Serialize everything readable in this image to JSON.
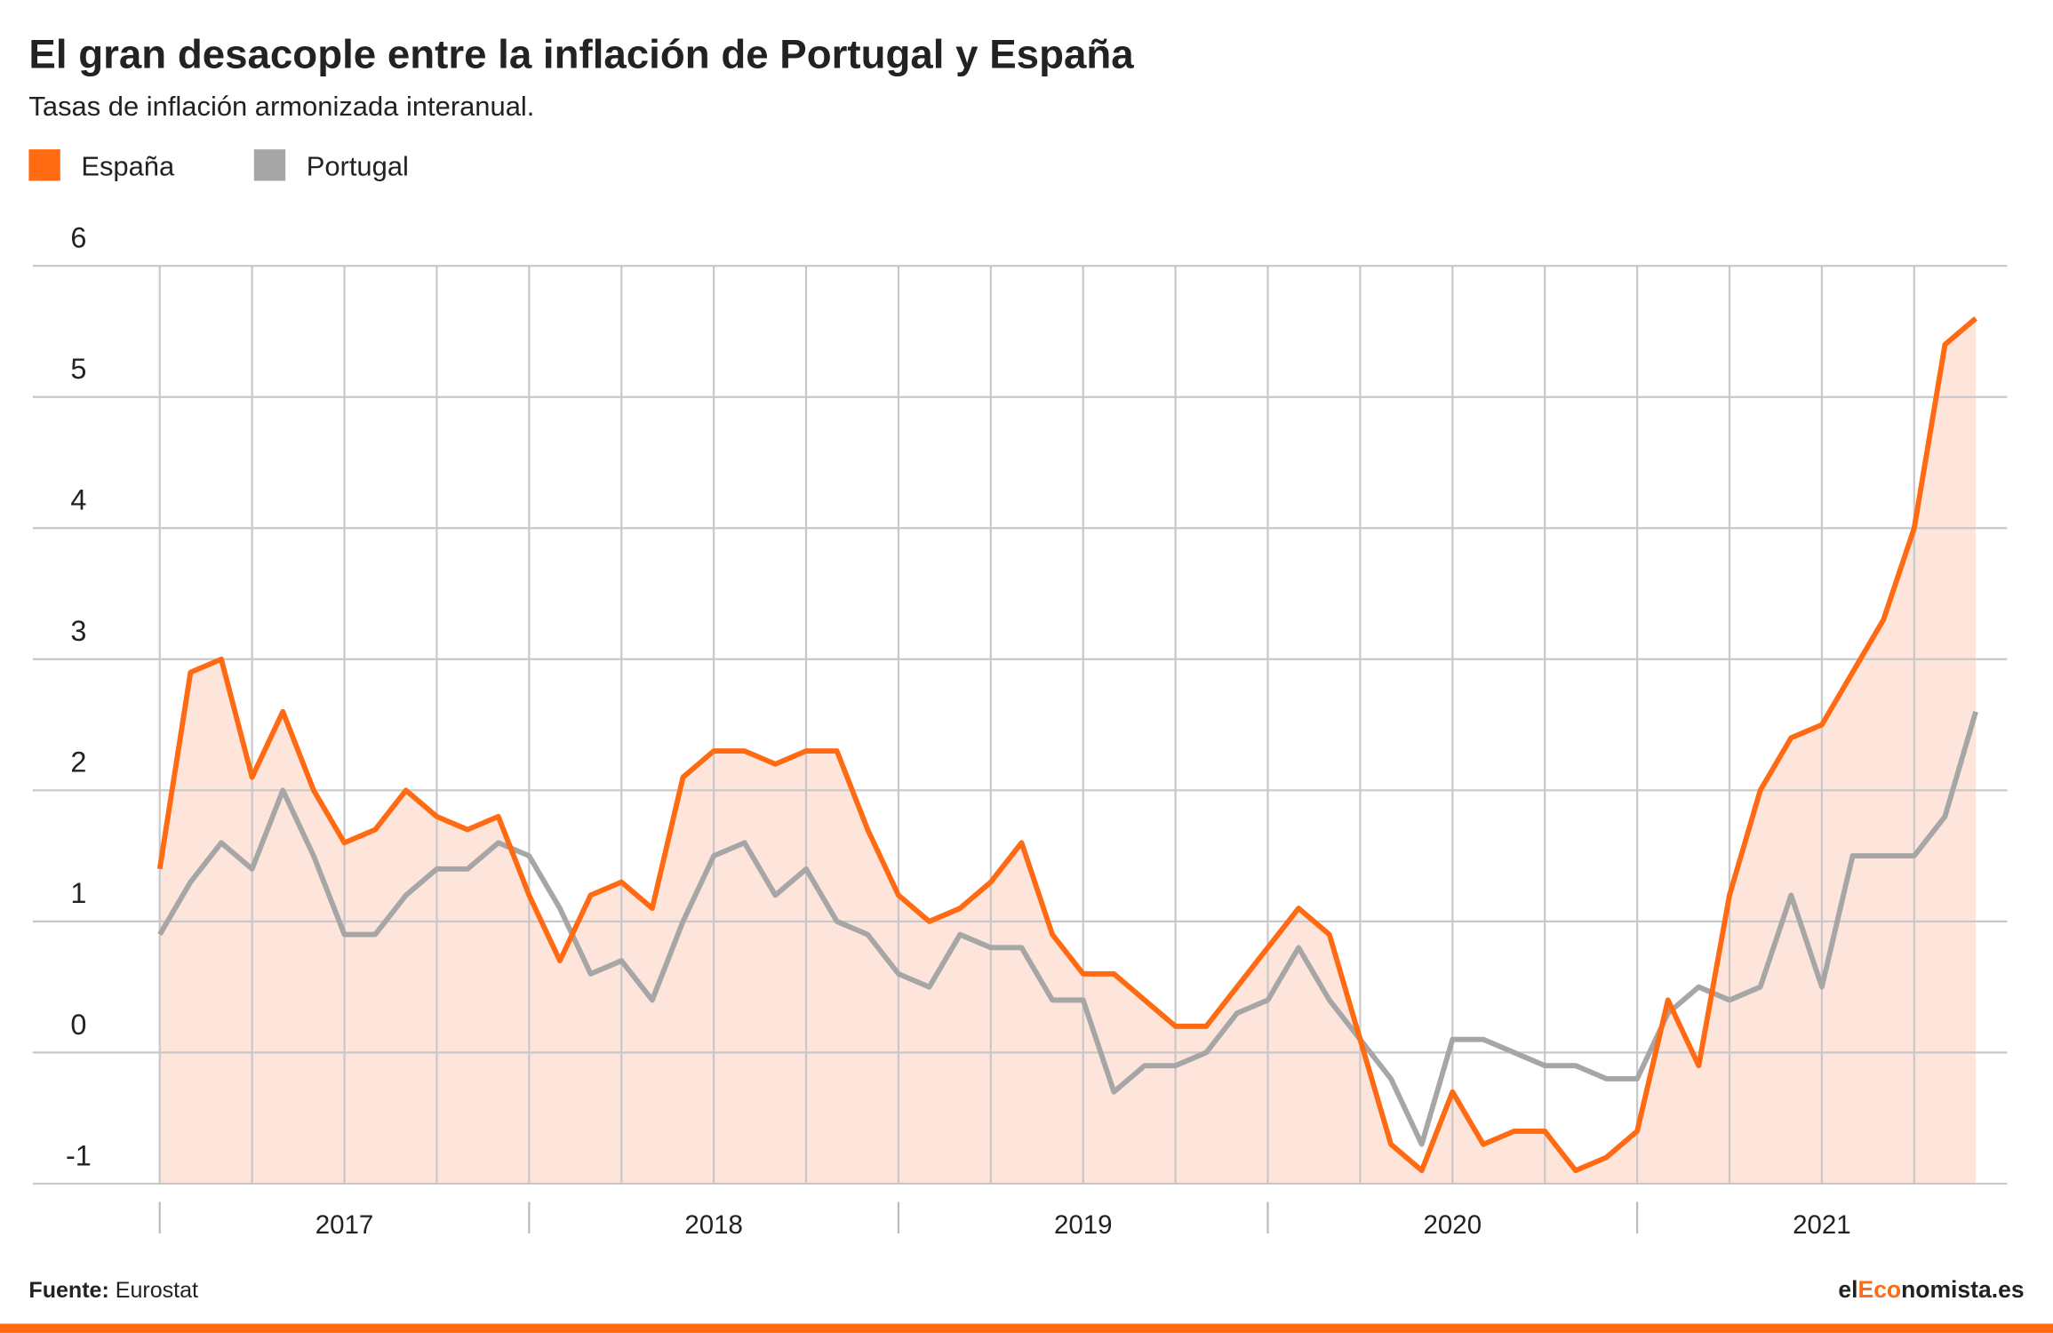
{
  "chart_data": {
    "type": "line",
    "title": "El gran desacople entre la inflación de Portugal y España",
    "subtitle": "Tasas de inflación armonizada interanual.",
    "categories": [
      null,
      null,
      null,
      null,
      null,
      null,
      "2017",
      null,
      null,
      null,
      null,
      null,
      null,
      null,
      null,
      null,
      null,
      null,
      "2018",
      null,
      null,
      null,
      null,
      null,
      null,
      null,
      null,
      null,
      null,
      null,
      "2019",
      null,
      null,
      null,
      null,
      null,
      null,
      null,
      null,
      null,
      null,
      null,
      "2020",
      null,
      null,
      null,
      null,
      null,
      null,
      null,
      null,
      null,
      null,
      null,
      "2021",
      null,
      null,
      null,
      null,
      null
    ],
    "series": [
      {
        "name": "España",
        "color": "#ff6a13",
        "fill": "#fde5dc",
        "values": [
          1.4,
          2.9,
          3.0,
          2.1,
          2.6,
          2.0,
          1.6,
          1.7,
          2.0,
          1.8,
          1.7,
          1.8,
          1.2,
          0.7,
          1.2,
          1.3,
          1.1,
          2.1,
          2.3,
          2.3,
          2.2,
          2.3,
          2.3,
          1.7,
          1.2,
          1.0,
          1.1,
          1.3,
          1.6,
          0.9,
          0.6,
          0.6,
          0.4,
          0.2,
          0.2,
          0.5,
          0.8,
          1.1,
          0.9,
          0.1,
          -0.7,
          -0.9,
          -0.3,
          -0.7,
          -0.6,
          -0.6,
          -0.9,
          -0.8,
          -0.6,
          0.4,
          -0.1,
          1.2,
          2.0,
          2.4,
          2.5,
          2.9,
          3.3,
          4.0,
          5.4,
          5.6
        ]
      },
      {
        "name": "Portugal",
        "color": "#a6a6a6",
        "values": [
          0.9,
          1.3,
          1.6,
          1.4,
          2.0,
          1.5,
          0.9,
          0.9,
          1.2,
          1.4,
          1.4,
          1.6,
          1.5,
          1.1,
          0.6,
          0.7,
          0.4,
          1.0,
          1.5,
          1.6,
          1.2,
          1.4,
          1.0,
          0.9,
          0.6,
          0.5,
          0.9,
          0.8,
          0.8,
          0.4,
          0.4,
          -0.3,
          -0.1,
          -0.1,
          0.0,
          0.3,
          0.4,
          0.8,
          0.4,
          0.1,
          -0.2,
          -0.7,
          0.1,
          0.1,
          0.0,
          -0.1,
          -0.1,
          -0.2,
          -0.2,
          0.3,
          0.5,
          0.4,
          0.5,
          1.2,
          0.5,
          1.5,
          1.5,
          1.5,
          1.8,
          2.6
        ]
      }
    ],
    "ylim": [
      -1,
      6
    ],
    "yticks": [
      -1,
      0,
      1,
      2,
      3,
      4,
      5,
      6
    ],
    "grid": true,
    "source_label": "Fuente:",
    "source": "Eurostat",
    "brand": [
      "el",
      "Eco",
      "nomista.es"
    ]
  }
}
